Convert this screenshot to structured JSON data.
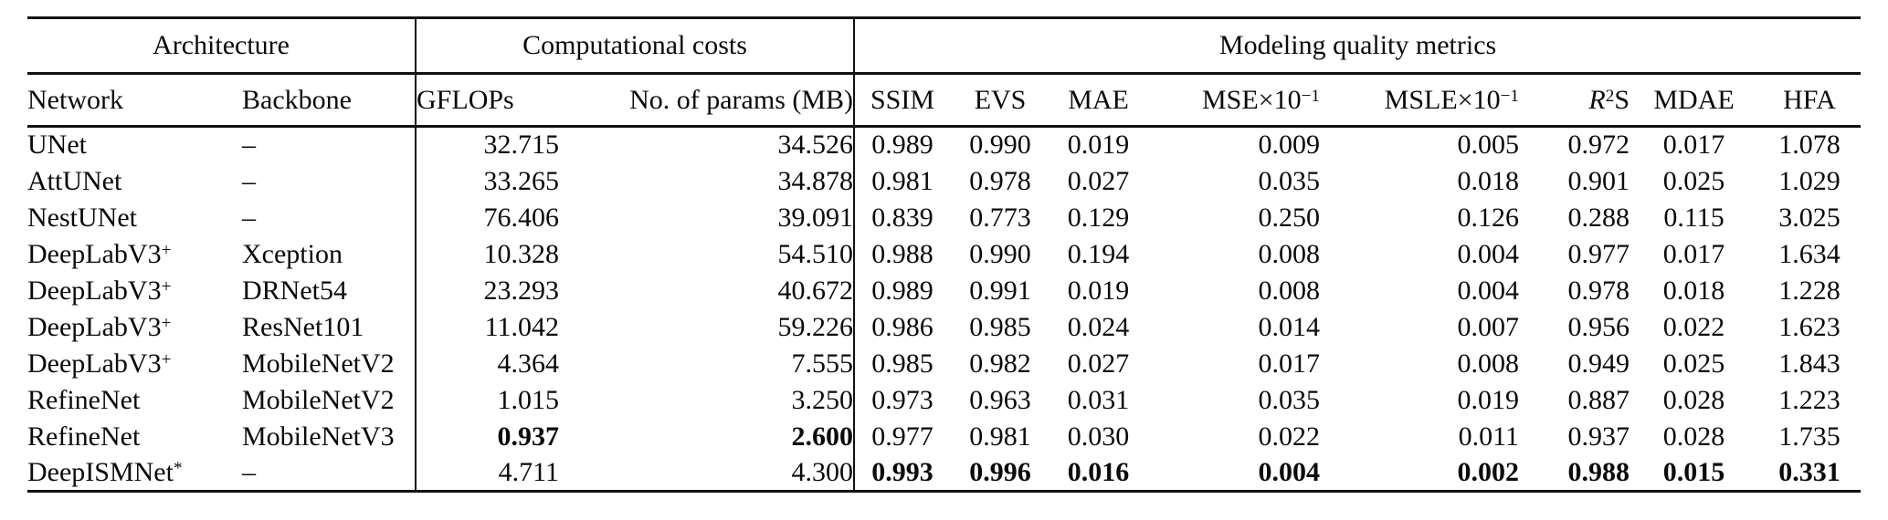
{
  "header": {
    "groups": [
      {
        "label": "Architecture",
        "span": 2
      },
      {
        "label": "Computational costs",
        "span": 2
      },
      {
        "label": "Modeling quality metrics",
        "span": 8
      }
    ],
    "columns": [
      {
        "id": "network",
        "parts": [
          {
            "t": "Network"
          }
        ]
      },
      {
        "id": "backbone",
        "parts": [
          {
            "t": "Backbone"
          }
        ]
      },
      {
        "id": "gflops",
        "parts": [
          {
            "t": "GFLOPs"
          }
        ],
        "sep": true
      },
      {
        "id": "params",
        "parts": [
          {
            "t": "No. of params (MB)"
          }
        ]
      },
      {
        "id": "ssim",
        "parts": [
          {
            "t": "SSIM"
          }
        ],
        "sep": true
      },
      {
        "id": "evs",
        "parts": [
          {
            "t": "EVS"
          }
        ]
      },
      {
        "id": "mae",
        "parts": [
          {
            "t": "MAE"
          }
        ]
      },
      {
        "id": "mse",
        "parts": [
          {
            "t": "MSE×10"
          },
          {
            "t": "−1",
            "sup": true
          }
        ]
      },
      {
        "id": "msle",
        "parts": [
          {
            "t": "MSLE×10"
          },
          {
            "t": "−1",
            "sup": true
          }
        ]
      },
      {
        "id": "r2s",
        "parts": [
          {
            "t": "R",
            "italic": true
          },
          {
            "t": "2",
            "sup": true
          },
          {
            "t": "S"
          }
        ]
      },
      {
        "id": "mdae",
        "parts": [
          {
            "t": "MDAE"
          }
        ]
      },
      {
        "id": "hfa",
        "parts": [
          {
            "t": "HFA"
          }
        ]
      }
    ]
  },
  "rows": [
    [
      "UNet",
      "–",
      "32.715",
      "34.526",
      "0.989",
      "0.990",
      "0.019",
      "0.009",
      "0.005",
      "0.972",
      "0.017",
      "1.078"
    ],
    [
      "AttUNet",
      "–",
      "33.265",
      "34.878",
      "0.981",
      "0.978",
      "0.027",
      "0.035",
      "0.018",
      "0.901",
      "0.025",
      "1.029"
    ],
    [
      "NestUNet",
      "–",
      "76.406",
      "39.091",
      "0.839",
      "0.773",
      "0.129",
      "0.250",
      "0.126",
      "0.288",
      "0.115",
      "3.025"
    ],
    [
      {
        "parts": [
          {
            "t": "DeepLabV3"
          },
          {
            "t": "+",
            "sup": true
          }
        ]
      },
      "Xception",
      "10.328",
      "54.510",
      "0.988",
      "0.990",
      "0.194",
      "0.008",
      "0.004",
      "0.977",
      "0.017",
      "1.634"
    ],
    [
      {
        "parts": [
          {
            "t": "DeepLabV3"
          },
          {
            "t": "+",
            "sup": true
          }
        ]
      },
      "DRNet54",
      "23.293",
      "40.672",
      "0.989",
      "0.991",
      "0.019",
      "0.008",
      "0.004",
      "0.978",
      "0.018",
      "1.228"
    ],
    [
      {
        "parts": [
          {
            "t": "DeepLabV3"
          },
          {
            "t": "+",
            "sup": true
          }
        ]
      },
      "ResNet101",
      "11.042",
      "59.226",
      "0.986",
      "0.985",
      "0.024",
      "0.014",
      "0.007",
      "0.956",
      "0.022",
      "1.623"
    ],
    [
      {
        "parts": [
          {
            "t": "DeepLabV3"
          },
          {
            "t": "+",
            "sup": true
          }
        ]
      },
      "MobileNetV2",
      "4.364",
      "7.555",
      "0.985",
      "0.982",
      "0.027",
      "0.017",
      "0.008",
      "0.949",
      "0.025",
      "1.843"
    ],
    [
      "RefineNet",
      "MobileNetV2",
      "1.015",
      "3.250",
      "0.973",
      "0.963",
      "0.031",
      "0.035",
      "0.019",
      "0.887",
      "0.028",
      "1.223"
    ],
    [
      "RefineNet",
      "MobileNetV3",
      {
        "t": "0.937",
        "bold": true
      },
      {
        "t": "2.600",
        "bold": true
      },
      "0.977",
      "0.981",
      "0.030",
      "0.022",
      "0.011",
      "0.937",
      "0.028",
      "1.735"
    ],
    [
      {
        "parts": [
          {
            "t": "DeepISMNet"
          },
          {
            "t": "*",
            "sup": true
          }
        ]
      },
      "–",
      "4.711",
      "4.300",
      {
        "t": "0.993",
        "bold": true
      },
      {
        "t": "0.996",
        "bold": true
      },
      {
        "t": "0.016",
        "bold": true
      },
      {
        "t": "0.004",
        "bold": true
      },
      {
        "t": "0.002",
        "bold": true
      },
      {
        "t": "0.988",
        "bold": true
      },
      {
        "t": "0.015",
        "bold": true
      },
      {
        "t": "0.331",
        "bold": true
      }
    ]
  ]
}
